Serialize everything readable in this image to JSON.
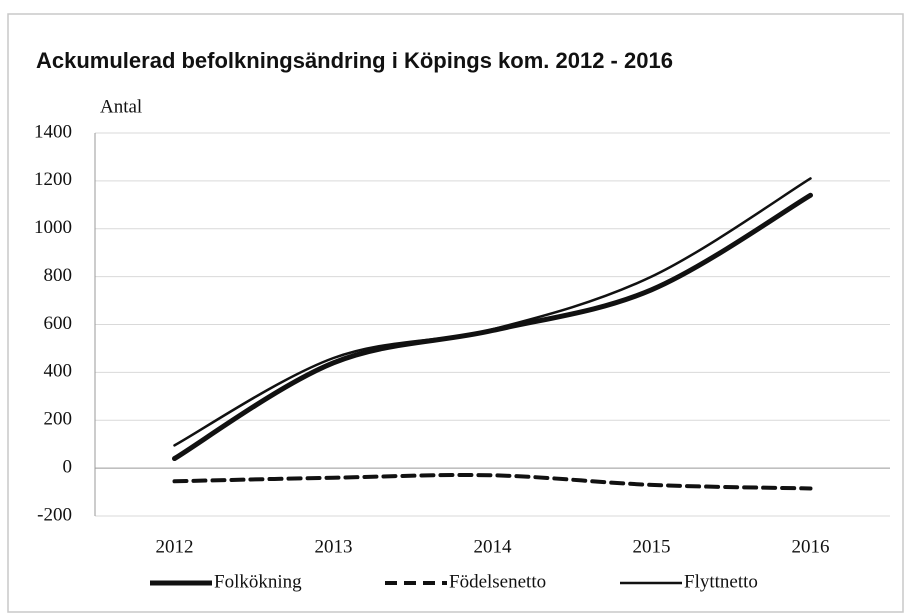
{
  "chart_data": {
    "type": "line",
    "title": "Ackumulerad befolkningsändring i Köpings kom. 2012 - 2016",
    "y_label": "Antal",
    "categories": [
      "2012",
      "2013",
      "2014",
      "2015",
      "2016"
    ],
    "series": [
      {
        "name": "Folkökning",
        "color": "#111111",
        "style": "thick",
        "values": [
          40,
          440,
          575,
          745,
          1140
        ]
      },
      {
        "name": "Födelsenetto",
        "color": "#111111",
        "style": "dashed",
        "values": [
          -55,
          -40,
          -30,
          -70,
          -85
        ]
      },
      {
        "name": "Flyttnetto",
        "color": "#111111",
        "style": "thin",
        "values": [
          95,
          460,
          580,
          800,
          1210
        ]
      }
    ],
    "ylim": [
      -200,
      1400
    ],
    "yticks": [
      -200,
      0,
      200,
      400,
      600,
      800,
      1000,
      1200,
      1400
    ],
    "grid": true
  }
}
